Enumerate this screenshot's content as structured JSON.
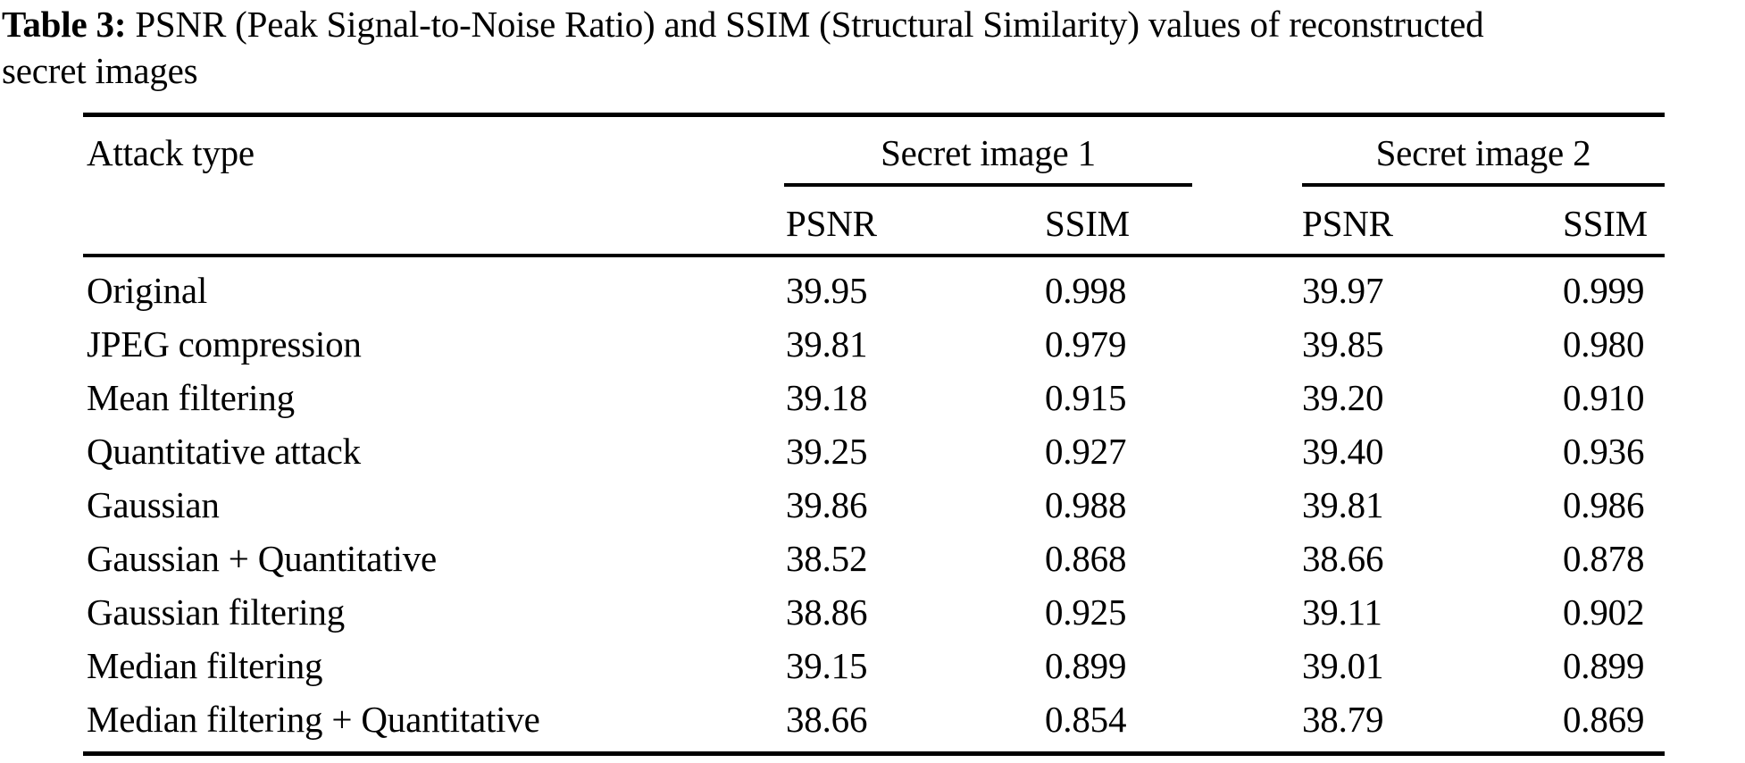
{
  "caption": {
    "label": "Table 3:",
    "line1": " PSNR (Peak Signal-to-Noise Ratio) and SSIM (Structural Similarity) values of reconstructed",
    "line2": "secret images"
  },
  "table": {
    "attack_header": "Attack type",
    "group1": "Secret image 1",
    "group2": "Secret image 2",
    "subheaders": [
      "PSNR",
      "SSIM",
      "PSNR",
      "SSIM"
    ],
    "rows": [
      {
        "attack": "Original",
        "psnr1": "39.95",
        "ssim1": "0.998",
        "psnr2": "39.97",
        "ssim2": "0.999"
      },
      {
        "attack": "JPEG compression",
        "psnr1": "39.81",
        "ssim1": "0.979",
        "psnr2": "39.85",
        "ssim2": "0.980"
      },
      {
        "attack": "Mean filtering",
        "psnr1": "39.18",
        "ssim1": "0.915",
        "psnr2": "39.20",
        "ssim2": "0.910"
      },
      {
        "attack": "Quantitative attack",
        "psnr1": "39.25",
        "ssim1": "0.927",
        "psnr2": "39.40",
        "ssim2": "0.936"
      },
      {
        "attack": "Gaussian",
        "psnr1": "39.86",
        "ssim1": "0.988",
        "psnr2": "39.81",
        "ssim2": "0.986"
      },
      {
        "attack": "Gaussian + Quantitative",
        "psnr1": "38.52",
        "ssim1": "0.868",
        "psnr2": "38.66",
        "ssim2": "0.878"
      },
      {
        "attack": "Gaussian filtering",
        "psnr1": "38.86",
        "ssim1": "0.925",
        "psnr2": "39.11",
        "ssim2": "0.902"
      },
      {
        "attack": "Median filtering",
        "psnr1": "39.15",
        "ssim1": "0.899",
        "psnr2": "39.01",
        "ssim2": "0.899"
      },
      {
        "attack": "Median filtering + Quantitative",
        "psnr1": "38.66",
        "ssim1": "0.854",
        "psnr2": "38.79",
        "ssim2": "0.869"
      }
    ]
  }
}
